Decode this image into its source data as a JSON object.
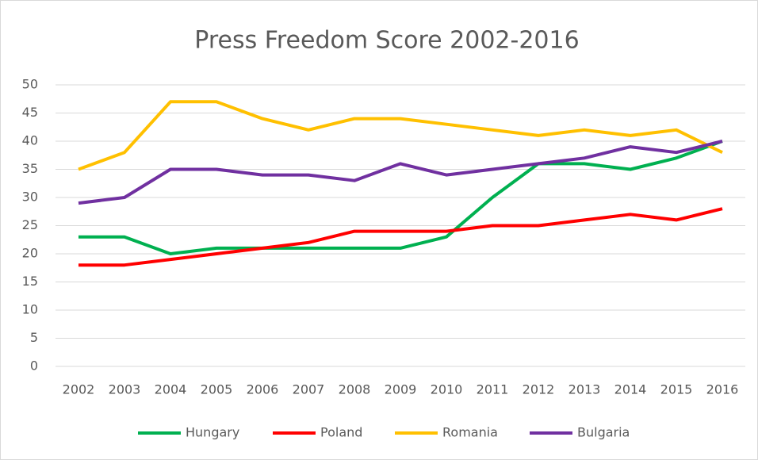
{
  "chart_data": {
    "type": "line",
    "title": "Press Freedom Score 2002-2016",
    "categories": [
      "2002",
      "2003",
      "2004",
      "2005",
      "2006",
      "2007",
      "2008",
      "2009",
      "2010",
      "2011",
      "2012",
      "2013",
      "2014",
      "2015",
      "2016"
    ],
    "series": [
      {
        "name": "Hungary",
        "color": "#00b050",
        "values": [
          23,
          23,
          20,
          21,
          21,
          21,
          21,
          21,
          23,
          30,
          36,
          36,
          35,
          37,
          40
        ]
      },
      {
        "name": "Poland",
        "color": "#ff0000",
        "values": [
          18,
          18,
          19,
          20,
          21,
          22,
          24,
          24,
          24,
          25,
          25,
          26,
          27,
          26,
          28
        ]
      },
      {
        "name": "Romania",
        "color": "#ffc000",
        "values": [
          35,
          38,
          47,
          47,
          44,
          42,
          44,
          44,
          43,
          42,
          41,
          42,
          41,
          42,
          38
        ]
      },
      {
        "name": "Bulgaria",
        "color": "#7030a0",
        "values": [
          29,
          30,
          35,
          35,
          34,
          34,
          33,
          36,
          34,
          35,
          36,
          37,
          39,
          38,
          40
        ]
      }
    ],
    "ylim": [
      0,
      50
    ],
    "yticks": [
      0,
      5,
      10,
      15,
      20,
      25,
      30,
      35,
      40,
      45,
      50
    ],
    "grid": true,
    "legend": "bottom"
  }
}
